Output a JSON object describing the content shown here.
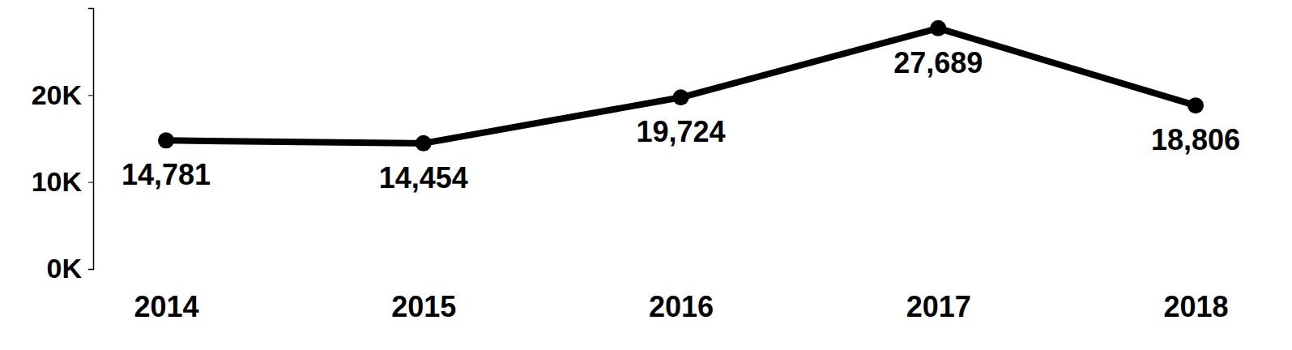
{
  "chart_data": {
    "type": "line",
    "categories": [
      "2014",
      "2015",
      "2016",
      "2017",
      "2018"
    ],
    "values": [
      14781,
      14454,
      19724,
      27689,
      18806
    ],
    "value_labels": [
      "14,781",
      "14,454",
      "19,724",
      "27,689",
      "18,806"
    ],
    "color": "#000000",
    "marker": "circle",
    "data_labels": true,
    "ylim": [
      0,
      30000
    ],
    "yticks": [
      {
        "value": 0,
        "label": "0K"
      },
      {
        "value": 10000,
        "label": "10K"
      },
      {
        "value": 20000,
        "label": "20K"
      }
    ]
  }
}
